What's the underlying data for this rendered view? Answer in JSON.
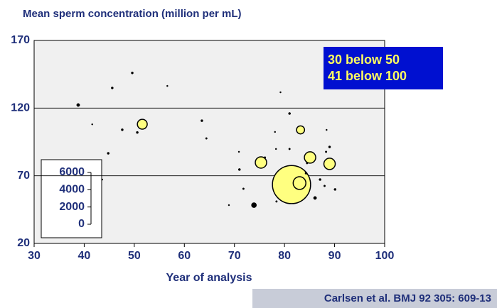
{
  "chart_data": {
    "type": "scatter",
    "title": "Mean sperm concentration (million per mL)",
    "x_label": "Year of analysis",
    "xlim": [
      30,
      100
    ],
    "xticks": [
      30,
      40,
      50,
      60,
      70,
      80,
      90,
      100
    ],
    "ylim": [
      20,
      170
    ],
    "yticks": [
      20,
      70,
      120,
      170
    ],
    "grid": true,
    "annotations": [
      "30 below   50",
      "41 below 100"
    ],
    "source": "Carlsen et al. BMJ 92 305: 609-13",
    "size_legend": {
      "lim": [
        0,
        6000
      ],
      "ticks": [
        0,
        2000,
        4000,
        6000
      ]
    },
    "series": [
      {
        "color": "#ffff80",
        "x": [
          51.6,
          75.3,
          81.4,
          83.0,
          83.2,
          85.1,
          89.0
        ],
        "values": [
          108.1,
          79.8,
          63.5,
          64.6,
          103.9,
          83.5,
          78.8
        ],
        "sizes": [
          300,
          400,
          4500,
          500,
          200,
          400,
          400
        ]
      },
      {
        "color": "#000000",
        "x": [
          38.8,
          45.6,
          49.6,
          56.6,
          41.6,
          47.6,
          50.6,
          44.8,
          43.6,
          63.5,
          64.4,
          68.9,
          70.9,
          71.0,
          71.8,
          73.9,
          76.1,
          78.3,
          78.1,
          78.4,
          79.2,
          81.0,
          81.0,
          86.1,
          87.1,
          88.4,
          88.3,
          89.0,
          90.1,
          88.0,
          84.5,
          84.3
        ],
        "values": [
          122.3,
          134.9,
          146.0,
          136.4,
          108.0,
          104.0,
          102.0,
          86.6,
          67.2,
          110.7,
          97.6,
          48.3,
          87.7,
          74.6,
          60.4,
          48.3,
          83.5,
          89.8,
          102.4,
          51.0,
          131.7,
          116.0,
          89.8,
          53.6,
          67.2,
          103.9,
          87.7,
          91.3,
          59.9,
          62.5,
          79.3,
          71.9
        ],
        "sizes": [
          30,
          15,
          15,
          5,
          5,
          15,
          15,
          15,
          5,
          15,
          10,
          5,
          5,
          15,
          10,
          60,
          10,
          5,
          5,
          10,
          5,
          15,
          10,
          30,
          15,
          5,
          10,
          15,
          15,
          10,
          10,
          15
        ]
      }
    ]
  }
}
